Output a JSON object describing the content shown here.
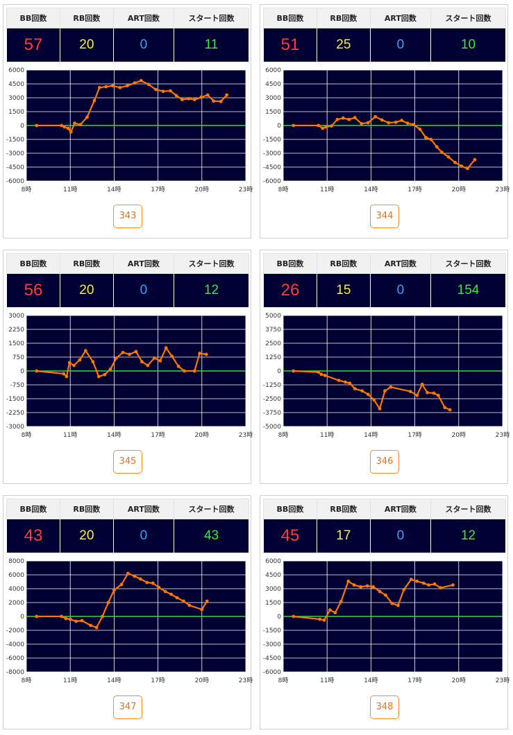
{
  "headers": {
    "bb": "BB回数",
    "rb": "RB回数",
    "art": "ART回数",
    "start": "スタート回数"
  },
  "colors": {
    "plot_bg": "#000033",
    "grid": "#ffffff",
    "zero_line": "#33dd33",
    "series": "#ff7700",
    "bb": "#ff3b3b",
    "rb": "#ffee33",
    "art": "#2fa8ff",
    "start": "#33ee33"
  },
  "panels": [
    {
      "machine": "343",
      "bb": "57",
      "rb": "20",
      "art": "0",
      "start": "11"
    },
    {
      "machine": "344",
      "bb": "51",
      "rb": "25",
      "art": "0",
      "start": "10"
    },
    {
      "machine": "345",
      "bb": "56",
      "rb": "20",
      "art": "0",
      "start": "12"
    },
    {
      "machine": "346",
      "bb": "26",
      "rb": "15",
      "art": "0",
      "start": "154"
    },
    {
      "machine": "347",
      "bb": "43",
      "rb": "20",
      "art": "0",
      "start": "43"
    },
    {
      "machine": "348",
      "bb": "45",
      "rb": "17",
      "art": "0",
      "start": "12"
    }
  ],
  "chart_data": [
    {
      "type": "line",
      "title": "",
      "xlabel": "",
      "ylabel": "",
      "xlim": [
        8,
        23
      ],
      "ylim": [
        -6000,
        6000
      ],
      "x_ticks": [
        "8時",
        "11時",
        "14時",
        "17時",
        "20時",
        "23時"
      ],
      "y_ticks": [
        "6000",
        "4500",
        "3000",
        "1500",
        "0",
        "-1500",
        "-3000",
        "-4500",
        "-6000"
      ],
      "grid": true,
      "legend": "none",
      "points": [
        [
          8.7,
          0
        ],
        [
          10.4,
          0
        ],
        [
          10.6,
          -150
        ],
        [
          10.85,
          -300
        ],
        [
          11.05,
          -700
        ],
        [
          11.3,
          250
        ],
        [
          11.7,
          100
        ],
        [
          12.15,
          900
        ],
        [
          12.65,
          2700
        ],
        [
          13.0,
          4100
        ],
        [
          13.45,
          4200
        ],
        [
          13.9,
          4300
        ],
        [
          14.4,
          4100
        ],
        [
          14.9,
          4300
        ],
        [
          15.4,
          4600
        ],
        [
          15.85,
          4850
        ],
        [
          16.35,
          4450
        ],
        [
          16.85,
          3900
        ],
        [
          17.35,
          3700
        ],
        [
          17.85,
          3750
        ],
        [
          18.25,
          3250
        ],
        [
          18.65,
          2800
        ],
        [
          19.1,
          2900
        ],
        [
          19.5,
          2800
        ],
        [
          19.95,
          3050
        ],
        [
          20.4,
          3300
        ],
        [
          20.8,
          2650
        ],
        [
          21.3,
          2600
        ],
        [
          21.7,
          3300
        ]
      ]
    },
    {
      "type": "line",
      "title": "",
      "xlabel": "",
      "ylabel": "",
      "xlim": [
        8,
        23
      ],
      "ylim": [
        -6000,
        6000
      ],
      "x_ticks": [
        "8時",
        "11時",
        "14時",
        "17時",
        "20時",
        "23時"
      ],
      "y_ticks": [
        "6000",
        "4500",
        "3000",
        "1500",
        "0",
        "-1500",
        "-3000",
        "-4500",
        "-6000"
      ],
      "grid": true,
      "legend": "none",
      "points": [
        [
          8.7,
          0
        ],
        [
          10.4,
          0
        ],
        [
          10.7,
          -300
        ],
        [
          10.9,
          -150
        ],
        [
          11.3,
          -50
        ],
        [
          11.7,
          650
        ],
        [
          12.1,
          800
        ],
        [
          12.5,
          650
        ],
        [
          12.9,
          850
        ],
        [
          13.35,
          200
        ],
        [
          13.8,
          300
        ],
        [
          14.3,
          950
        ],
        [
          14.75,
          600
        ],
        [
          15.2,
          300
        ],
        [
          15.7,
          350
        ],
        [
          16.1,
          550
        ],
        [
          16.5,
          250
        ],
        [
          16.9,
          100
        ],
        [
          17.35,
          -400
        ],
        [
          17.75,
          -1300
        ],
        [
          18.1,
          -1500
        ],
        [
          18.5,
          -2300
        ],
        [
          18.85,
          -2900
        ],
        [
          19.3,
          -3400
        ],
        [
          19.75,
          -4000
        ],
        [
          20.2,
          -4400
        ],
        [
          20.6,
          -4650
        ],
        [
          21.1,
          -3700
        ]
      ]
    },
    {
      "type": "line",
      "title": "",
      "xlabel": "",
      "ylabel": "",
      "xlim": [
        8,
        23
      ],
      "ylim": [
        -3000,
        3000
      ],
      "x_ticks": [
        "8時",
        "11時",
        "14時",
        "17時",
        "20時",
        "23時"
      ],
      "y_ticks": [
        "3000",
        "2250",
        "1500",
        "750",
        "0",
        "-750",
        "-1500",
        "-2250",
        "-3000"
      ],
      "grid": true,
      "legend": "none",
      "points": [
        [
          8.7,
          0
        ],
        [
          10.55,
          -150
        ],
        [
          10.75,
          -300
        ],
        [
          10.95,
          450
        ],
        [
          11.25,
          300
        ],
        [
          11.65,
          600
        ],
        [
          12.05,
          1100
        ],
        [
          12.55,
          500
        ],
        [
          12.95,
          -300
        ],
        [
          13.35,
          -200
        ],
        [
          13.75,
          100
        ],
        [
          14.15,
          700
        ],
        [
          14.6,
          1000
        ],
        [
          15.05,
          900
        ],
        [
          15.5,
          1050
        ],
        [
          15.9,
          500
        ],
        [
          16.3,
          300
        ],
        [
          16.75,
          700
        ],
        [
          17.15,
          550
        ],
        [
          17.55,
          1250
        ],
        [
          17.95,
          800
        ],
        [
          18.4,
          250
        ],
        [
          18.8,
          0
        ],
        [
          19.5,
          0
        ],
        [
          19.85,
          950
        ],
        [
          20.3,
          900
        ]
      ]
    },
    {
      "type": "line",
      "title": "",
      "xlabel": "",
      "ylabel": "",
      "xlim": [
        8,
        23
      ],
      "ylim": [
        -5000,
        5000
      ],
      "x_ticks": [
        "8時",
        "11時",
        "14時",
        "17時",
        "20時",
        "23時"
      ],
      "y_ticks": [
        "5000",
        "3750",
        "2500",
        "1250",
        "0",
        "-1250",
        "-2500",
        "-3750",
        "-5000"
      ],
      "grid": true,
      "legend": "none",
      "points": [
        [
          8.7,
          0
        ],
        [
          10.4,
          -100
        ],
        [
          10.6,
          -300
        ],
        [
          10.85,
          -400
        ],
        [
          11.8,
          -850
        ],
        [
          12.25,
          -1000
        ],
        [
          12.55,
          -1100
        ],
        [
          12.9,
          -1600
        ],
        [
          13.4,
          -1800
        ],
        [
          13.8,
          -2100
        ],
        [
          14.2,
          -2600
        ],
        [
          14.6,
          -3400
        ],
        [
          14.95,
          -1800
        ],
        [
          15.35,
          -1450
        ],
        [
          16.7,
          -1850
        ],
        [
          17.15,
          -2200
        ],
        [
          17.5,
          -1200
        ],
        [
          17.85,
          -1950
        ],
        [
          18.3,
          -2000
        ],
        [
          18.6,
          -2200
        ],
        [
          19.05,
          -3300
        ],
        [
          19.4,
          -3500
        ]
      ]
    },
    {
      "type": "line",
      "title": "",
      "xlabel": "",
      "ylabel": "",
      "xlim": [
        8,
        23
      ],
      "ylim": [
        -8000,
        8000
      ],
      "x_ticks": [
        "8時",
        "11時",
        "14時",
        "17時",
        "20時",
        "23時"
      ],
      "y_ticks": [
        "8000",
        "6000",
        "4000",
        "2000",
        "0",
        "-2000",
        "-4000",
        "-6000",
        "-8000"
      ],
      "grid": true,
      "legend": "none",
      "points": [
        [
          8.7,
          0
        ],
        [
          10.4,
          0
        ],
        [
          10.7,
          -300
        ],
        [
          11.0,
          -400
        ],
        [
          11.4,
          -700
        ],
        [
          11.8,
          -600
        ],
        [
          12.4,
          -1300
        ],
        [
          12.8,
          -1600
        ],
        [
          13.2,
          0
        ],
        [
          13.6,
          2000
        ],
        [
          14.0,
          3800
        ],
        [
          14.5,
          4600
        ],
        [
          14.95,
          6200
        ],
        [
          15.4,
          5800
        ],
        [
          15.8,
          5400
        ],
        [
          16.25,
          4900
        ],
        [
          16.65,
          4800
        ],
        [
          17.05,
          4200
        ],
        [
          17.5,
          3600
        ],
        [
          17.9,
          3200
        ],
        [
          18.3,
          2700
        ],
        [
          18.75,
          2200
        ],
        [
          19.15,
          1600
        ],
        [
          20.0,
          1000
        ],
        [
          20.35,
          2200
        ]
      ]
    },
    {
      "type": "line",
      "title": "",
      "xlabel": "",
      "ylabel": "",
      "xlim": [
        8,
        23
      ],
      "ylim": [
        -6000,
        6000
      ],
      "x_ticks": [
        "8時",
        "11時",
        "14時",
        "17時",
        "20時",
        "23時"
      ],
      "y_ticks": [
        "6000",
        "4500",
        "3000",
        "1500",
        "0",
        "-1500",
        "-3000",
        "-4500",
        "-6000"
      ],
      "grid": true,
      "legend": "none",
      "points": [
        [
          8.7,
          0
        ],
        [
          10.5,
          -300
        ],
        [
          10.8,
          -400
        ],
        [
          11.2,
          700
        ],
        [
          11.55,
          400
        ],
        [
          11.95,
          1600
        ],
        [
          12.45,
          3800
        ],
        [
          12.85,
          3400
        ],
        [
          13.3,
          3200
        ],
        [
          13.75,
          3300
        ],
        [
          14.15,
          3200
        ],
        [
          14.6,
          2700
        ],
        [
          15.0,
          2300
        ],
        [
          15.45,
          1400
        ],
        [
          15.85,
          1200
        ],
        [
          16.25,
          2900
        ],
        [
          16.75,
          4000
        ],
        [
          17.15,
          3800
        ],
        [
          17.6,
          3600
        ],
        [
          17.95,
          3400
        ],
        [
          18.35,
          3500
        ],
        [
          18.75,
          3100
        ],
        [
          19.6,
          3400
        ]
      ]
    }
  ]
}
